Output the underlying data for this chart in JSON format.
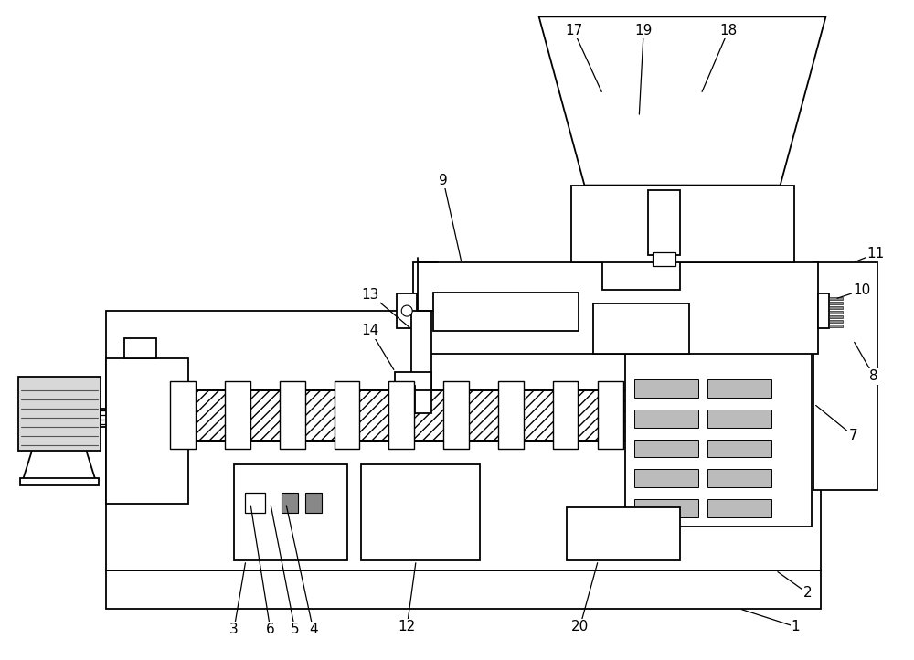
{
  "bg_color": "#ffffff",
  "lc": "#000000",
  "lw": 1.3,
  "figsize": [
    10.0,
    7.22
  ],
  "dpi": 100,
  "xlim": [
    0,
    10
  ],
  "ylim": [
    0,
    7.22
  ]
}
